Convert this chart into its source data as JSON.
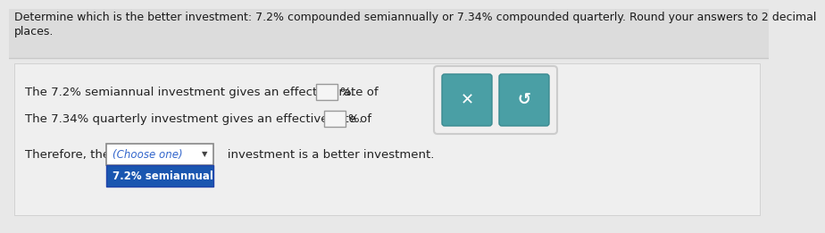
{
  "bg_top": "#dcdcdc",
  "bg_bottom": "#e8e8e8",
  "title_text_line1": "Determine which is the better investment: 7.2% compounded semiannually or 7.34% compounded quarterly. Round your answers to 2 decimal",
  "title_text_line2": "places.",
  "line1": "The 7.2% semiannual investment gives an effective rate of",
  "line2": "The 7.34% quarterly investment gives an effective rate of",
  "line3_prefix": "Therefore, the",
  "line3_dropdown": "(Choose one)",
  "line3_suffix": "   investment is a better investment.",
  "dropdown_option": "7.2% semiannual",
  "box_fill": "#f5f5f5",
  "box_border": "#999999",
  "teal_color": "#4a9fa5",
  "panel_fill": "#f0efef",
  "panel_border": "#cccccc",
  "choose_one_color": "#3366cc",
  "dropdown_option_bg": "#1a56b0",
  "title_fontsize": 9.0,
  "body_fontsize": 9.5,
  "title_color": "#1a1a1a",
  "body_color": "#222222",
  "separator_color": "#c8c8c8"
}
